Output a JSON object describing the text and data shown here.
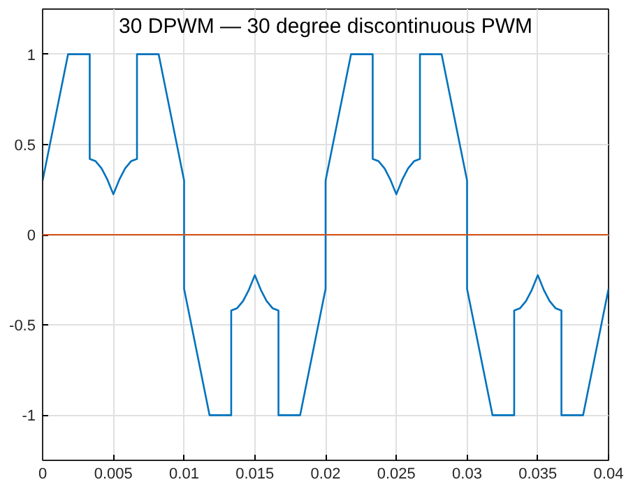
{
  "chart_data": {
    "type": "line",
    "title": "30 DPWM — 30 degree discontinuous PWM",
    "x": [
      0,
      0.0018,
      0.00333,
      0.00333,
      0.00375,
      0.00417,
      0.00458,
      0.005,
      0.00542,
      0.00583,
      0.00625,
      0.00667,
      0.00667,
      0.0082,
      0.01,
      0.01,
      0.0118,
      0.01333,
      0.01333,
      0.01375,
      0.01417,
      0.01458,
      0.015,
      0.01542,
      0.01583,
      0.01625,
      0.01667,
      0.01667,
      0.0182,
      0.02,
      0.02,
      0.0218,
      0.02333,
      0.02333,
      0.02375,
      0.02417,
      0.02458,
      0.025,
      0.02542,
      0.02583,
      0.02625,
      0.02667,
      0.02667,
      0.0282,
      0.03,
      0.03,
      0.0318,
      0.03333,
      0.03333,
      0.03375,
      0.03417,
      0.03458,
      0.035,
      0.03542,
      0.03583,
      0.03625,
      0.03667,
      0.03667,
      0.0382,
      0.04
    ],
    "series": [
      {
        "color": "#0072bd",
        "values": [
          0.3,
          1,
          1,
          0.42,
          0.407,
          0.367,
          0.305,
          0.224,
          0.305,
          0.367,
          0.407,
          0.42,
          1,
          1,
          0.3,
          -0.3,
          -1,
          -1,
          -0.42,
          -0.407,
          -0.367,
          -0.305,
          -0.224,
          -0.305,
          -0.367,
          -0.407,
          -0.42,
          -1,
          -1,
          -0.3,
          0.3,
          1,
          1,
          0.42,
          0.407,
          0.367,
          0.305,
          0.224,
          0.305,
          0.367,
          0.407,
          0.42,
          1,
          1,
          0.3,
          -0.3,
          -1,
          -1,
          -0.42,
          -0.407,
          -0.367,
          -0.305,
          -0.224,
          -0.305,
          -0.367,
          -0.407,
          -0.42,
          -1,
          -1,
          -0.3
        ]
      }
    ],
    "ref_lines": [
      {
        "axis": "y",
        "value": 0,
        "color": "#d95319"
      }
    ],
    "xlim": [
      0,
      0.04
    ],
    "xticks": [
      0,
      0.005,
      0.01,
      0.015,
      0.02,
      0.025,
      0.03,
      0.035,
      0.04
    ],
    "ylim": [
      -1.25,
      1.25
    ],
    "yticks": [
      -1,
      -0.5,
      0,
      0.5,
      1
    ],
    "grid": true,
    "line_style": "solid",
    "marker": "none"
  }
}
